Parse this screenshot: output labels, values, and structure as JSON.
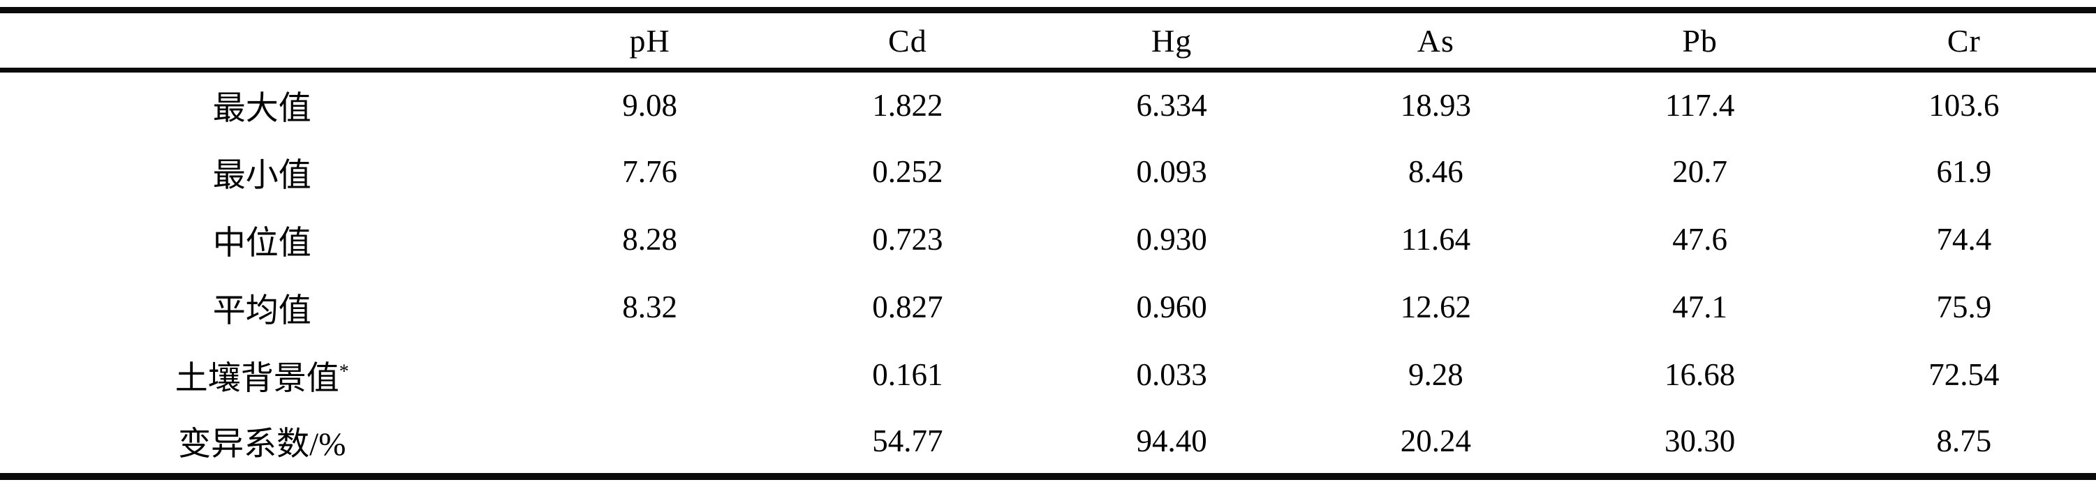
{
  "table": {
    "columns": [
      "",
      "pH",
      "Cd",
      "Hg",
      "As",
      "Pb",
      "Cr"
    ],
    "rows": [
      {
        "label": "最大值",
        "sup": "",
        "values": [
          "9.08",
          "1.822",
          "6.334",
          "18.93",
          "117.4",
          "103.6"
        ]
      },
      {
        "label": "最小值",
        "sup": "",
        "values": [
          "7.76",
          "0.252",
          "0.093",
          "8.46",
          "20.7",
          "61.9"
        ]
      },
      {
        "label": "中位值",
        "sup": "",
        "values": [
          "8.28",
          "0.723",
          "0.930",
          "11.64",
          "47.6",
          "74.4"
        ]
      },
      {
        "label": "平均值",
        "sup": "",
        "values": [
          "8.32",
          "0.827",
          "0.960",
          "12.62",
          "47.1",
          "75.9"
        ]
      },
      {
        "label": "土壤背景值",
        "sup": "*",
        "values": [
          "",
          "0.161",
          "0.033",
          "9.28",
          "16.68",
          "72.54"
        ]
      },
      {
        "label": "变异系数/%",
        "sup": "",
        "values": [
          "",
          "54.77",
          "94.40",
          "20.24",
          "30.30",
          "8.75"
        ]
      }
    ],
    "rule_color": "#0a0a0a",
    "background_color": "#ffffff",
    "text_color": "#000000"
  }
}
